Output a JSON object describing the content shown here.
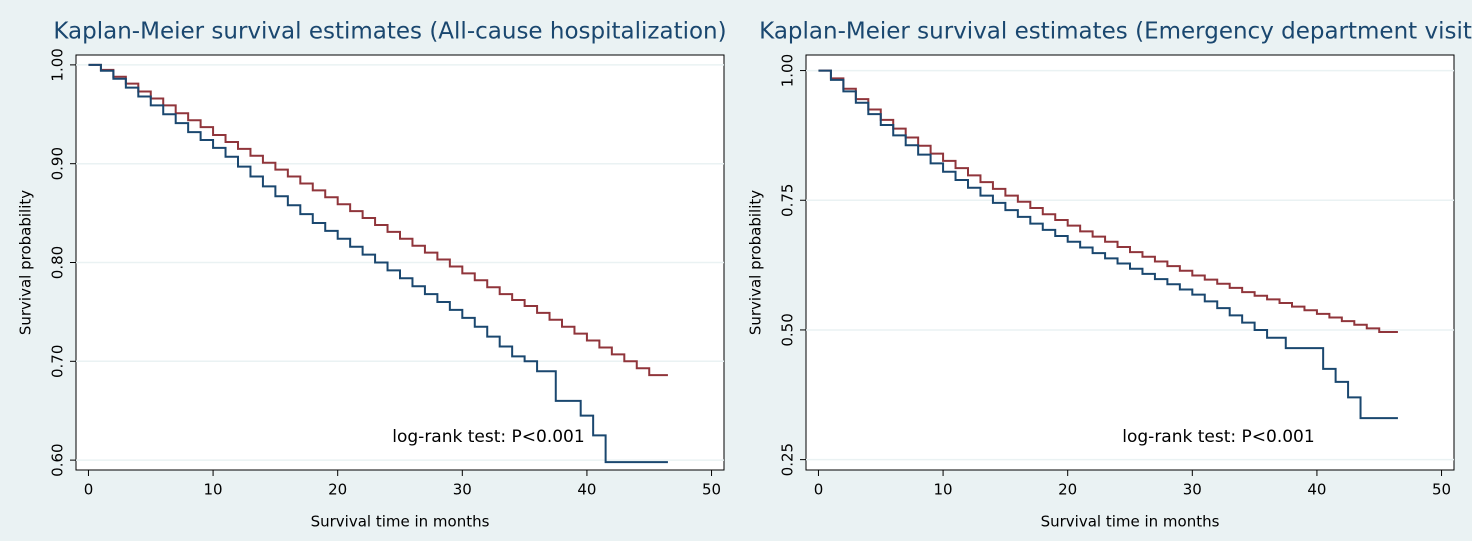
{
  "chart_data": [
    {
      "type": "step",
      "title": "Kaplan-Meier survival estimates (All-cause hospitalization)",
      "xlabel": "Survival time in months",
      "ylabel": "Survival probability",
      "annotation": "log-rank test: P<0.001",
      "xlim": [
        -1,
        51
      ],
      "xticks": [
        0,
        10,
        20,
        30,
        40,
        50
      ],
      "ylim": [
        0.59,
        1.01
      ],
      "yticks": [
        {
          "value": 0.6,
          "label": "0.60"
        },
        {
          "value": 0.7,
          "label": "0.70"
        },
        {
          "value": 0.8,
          "label": "0.80"
        },
        {
          "value": 0.9,
          "label": "0.90"
        },
        {
          "value": 1,
          "label": "1.00"
        }
      ],
      "grid": true,
      "series": [
        {
          "color": "#90353b",
          "x": [
            0,
            1,
            2,
            3,
            4,
            5,
            6,
            7,
            8,
            9,
            10,
            11,
            12,
            13,
            14,
            15,
            16,
            17,
            18,
            19,
            20,
            21,
            22,
            23,
            24,
            25,
            26,
            27,
            28,
            29,
            30,
            31,
            32,
            33,
            34,
            35,
            36,
            37,
            38,
            39,
            40,
            41,
            42,
            43,
            44,
            45,
            46.5
          ],
          "values": [
            1.0,
            0.995,
            0.988,
            0.981,
            0.973,
            0.966,
            0.959,
            0.951,
            0.944,
            0.937,
            0.929,
            0.922,
            0.915,
            0.908,
            0.901,
            0.894,
            0.887,
            0.88,
            0.873,
            0.866,
            0.859,
            0.852,
            0.845,
            0.838,
            0.831,
            0.824,
            0.817,
            0.81,
            0.803,
            0.796,
            0.789,
            0.782,
            0.775,
            0.768,
            0.762,
            0.756,
            0.749,
            0.742,
            0.735,
            0.728,
            0.721,
            0.714,
            0.707,
            0.7,
            0.693,
            0.686,
            0.686
          ]
        },
        {
          "color": "#1a476f",
          "x": [
            0,
            1,
            2,
            3,
            4,
            5,
            6,
            7,
            8,
            9,
            10,
            11,
            12,
            13,
            14,
            15,
            16,
            17,
            18,
            19,
            20,
            21,
            22,
            23,
            24,
            25,
            26,
            27,
            28,
            29,
            30,
            31,
            32,
            33,
            34,
            35,
            36,
            37.5,
            39.5,
            40.5,
            41.5,
            46.5
          ],
          "values": [
            1.0,
            0.994,
            0.986,
            0.977,
            0.968,
            0.959,
            0.95,
            0.941,
            0.932,
            0.924,
            0.916,
            0.907,
            0.897,
            0.887,
            0.877,
            0.867,
            0.858,
            0.849,
            0.84,
            0.832,
            0.824,
            0.816,
            0.808,
            0.8,
            0.792,
            0.784,
            0.776,
            0.768,
            0.76,
            0.752,
            0.744,
            0.735,
            0.725,
            0.715,
            0.705,
            0.7,
            0.69,
            0.66,
            0.645,
            0.625,
            0.598,
            0.598
          ]
        }
      ]
    },
    {
      "type": "step",
      "title": "Kaplan-Meier survival estimates (Emergency department visit)",
      "xlabel": "Survival time in months",
      "ylabel": "Survival probability",
      "annotation": "log-rank test: P<0.001",
      "xlim": [
        -1,
        51
      ],
      "xticks": [
        0,
        10,
        20,
        30,
        40,
        50
      ],
      "ylim": [
        0.23,
        1.03
      ],
      "yticks": [
        {
          "value": 0.25,
          "label": "0.25"
        },
        {
          "value": 0.5,
          "label": "0.50"
        },
        {
          "value": 0.75,
          "label": "0.75"
        },
        {
          "value": 1,
          "label": "1.00"
        }
      ],
      "grid": true,
      "series": [
        {
          "color": "#90353b",
          "x": [
            0,
            1,
            2,
            3,
            4,
            5,
            6,
            7,
            8,
            9,
            10,
            11,
            12,
            13,
            14,
            15,
            16,
            17,
            18,
            19,
            20,
            21,
            22,
            23,
            24,
            25,
            26,
            27,
            28,
            29,
            30,
            31,
            32,
            33,
            34,
            35,
            36,
            37,
            38,
            39,
            40,
            41,
            42,
            43,
            44,
            45,
            46.5
          ],
          "values": [
            1.0,
            0.985,
            0.965,
            0.945,
            0.925,
            0.905,
            0.888,
            0.871,
            0.855,
            0.84,
            0.826,
            0.812,
            0.798,
            0.785,
            0.772,
            0.759,
            0.747,
            0.735,
            0.723,
            0.712,
            0.701,
            0.69,
            0.68,
            0.67,
            0.66,
            0.65,
            0.641,
            0.632,
            0.623,
            0.614,
            0.605,
            0.597,
            0.589,
            0.581,
            0.573,
            0.566,
            0.559,
            0.552,
            0.545,
            0.538,
            0.531,
            0.524,
            0.517,
            0.51,
            0.503,
            0.496,
            0.496
          ]
        },
        {
          "color": "#1a476f",
          "x": [
            0,
            1,
            2,
            3,
            4,
            5,
            6,
            7,
            8,
            9,
            10,
            11,
            12,
            13,
            14,
            15,
            16,
            17,
            18,
            19,
            20,
            21,
            22,
            23,
            24,
            25,
            26,
            27,
            28,
            29,
            30,
            31,
            32,
            33,
            34,
            35,
            36,
            37.5,
            40.5,
            41.5,
            42.5,
            43.5,
            46.5
          ],
          "values": [
            1.0,
            0.982,
            0.96,
            0.938,
            0.916,
            0.895,
            0.875,
            0.856,
            0.838,
            0.821,
            0.805,
            0.789,
            0.774,
            0.759,
            0.745,
            0.731,
            0.718,
            0.705,
            0.693,
            0.681,
            0.67,
            0.659,
            0.648,
            0.638,
            0.628,
            0.618,
            0.608,
            0.598,
            0.588,
            0.578,
            0.568,
            0.555,
            0.542,
            0.528,
            0.514,
            0.5,
            0.485,
            0.465,
            0.425,
            0.4,
            0.37,
            0.33,
            0.33
          ]
        }
      ]
    }
  ]
}
